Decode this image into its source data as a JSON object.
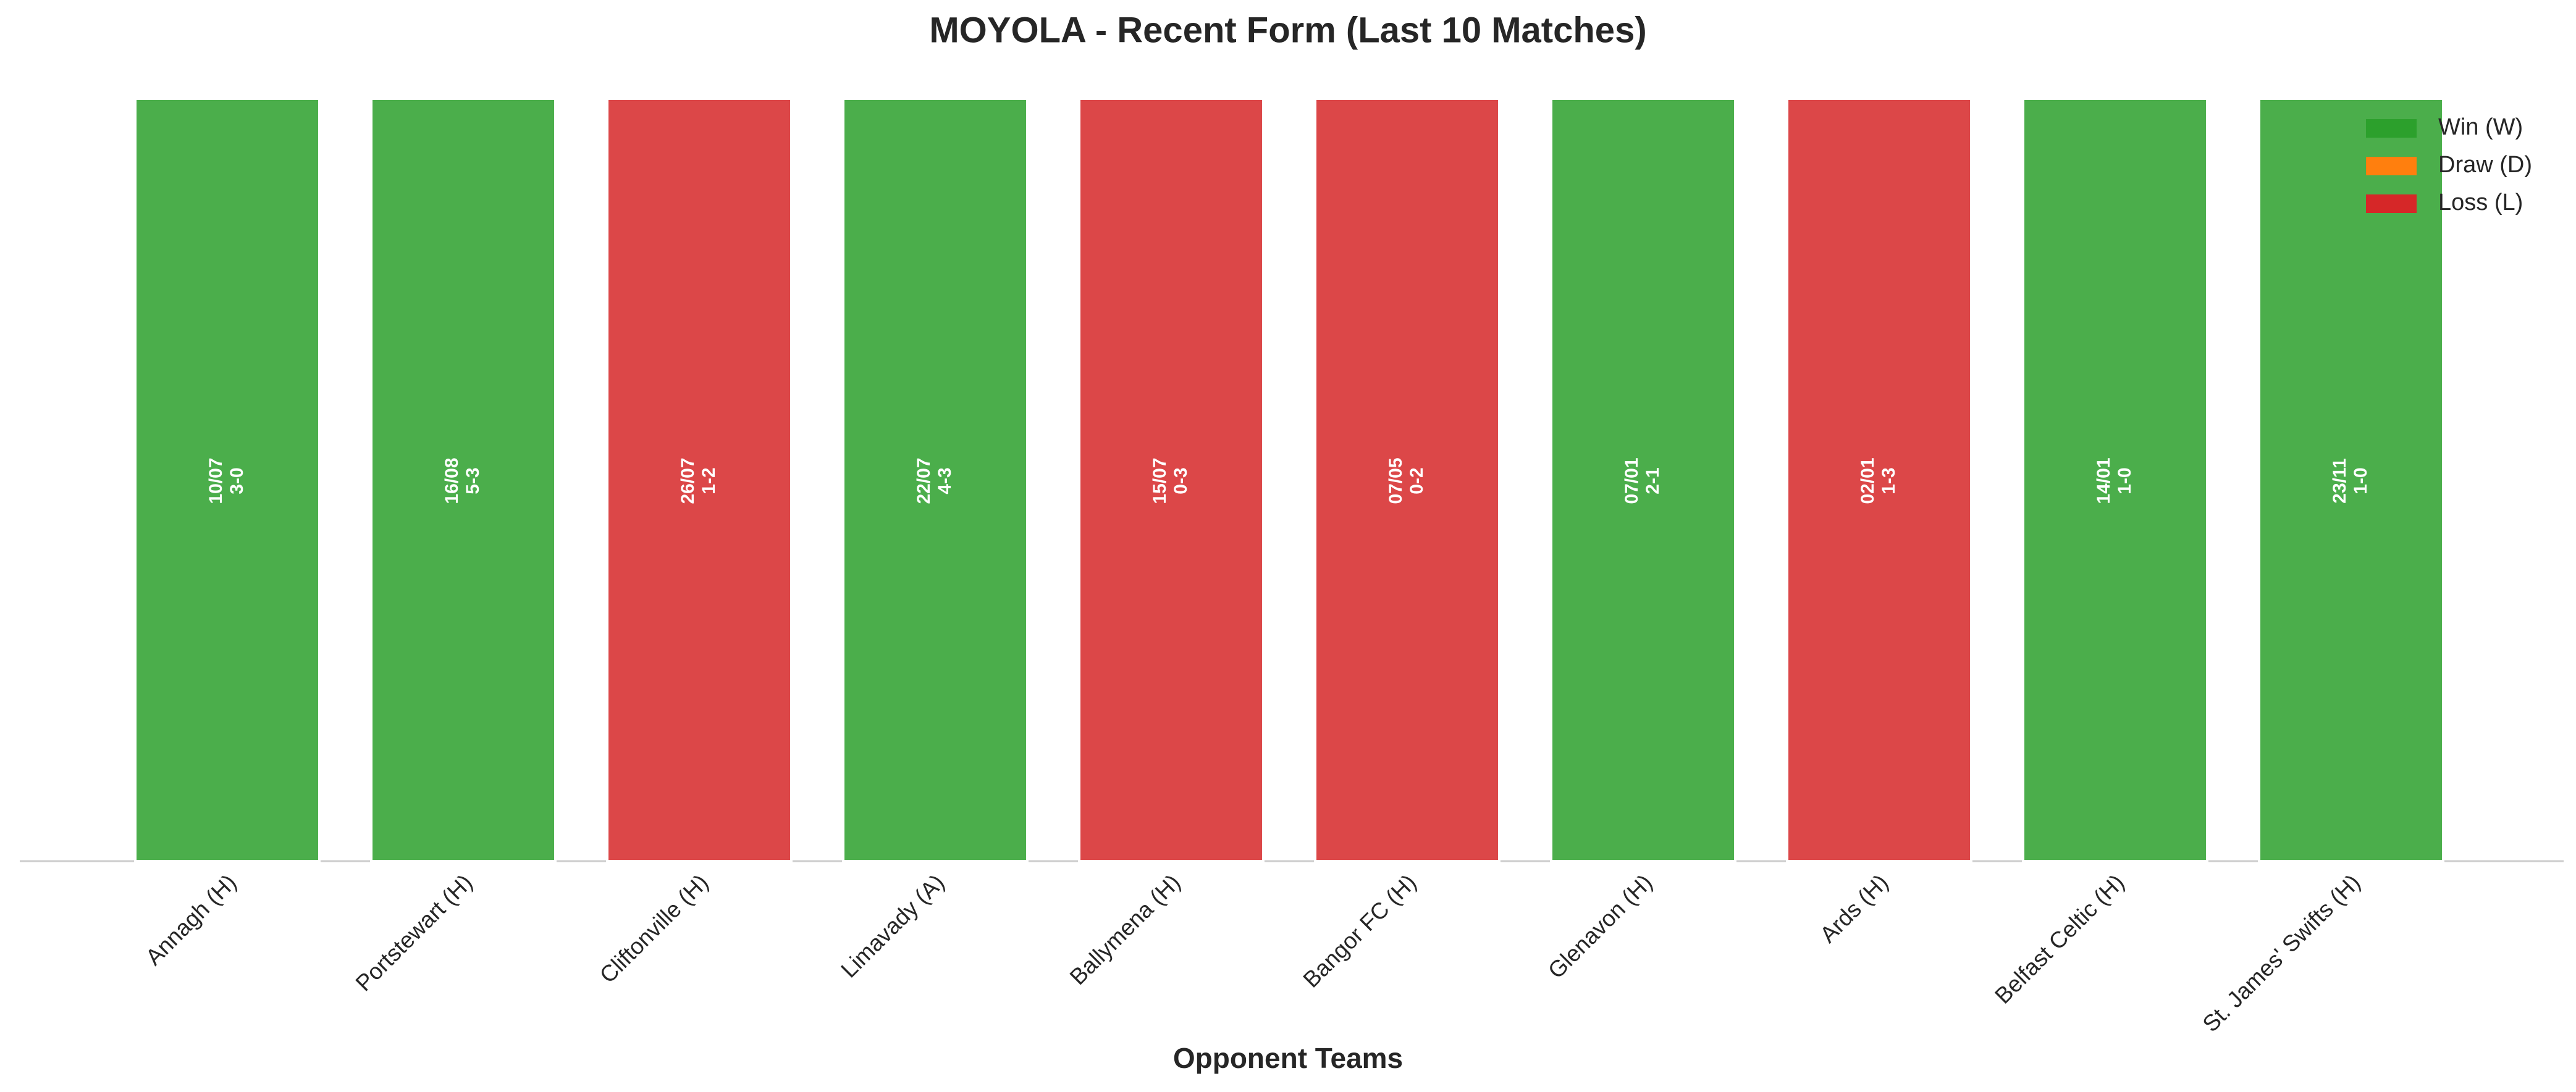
{
  "chart_data": {
    "type": "bar",
    "title": "MOYOLA - Recent Form (Last 10 Matches)",
    "x_label": "Opponent Teams",
    "categories": [
      "Annagh (H)",
      "Portstewart (H)",
      "Cliftonville (H)",
      "Limavady (A)",
      "Ballymena (H)",
      "Bangor FC (H)",
      "Glenavon (H)",
      "Ards (H)",
      "Belfast Celtic (H)",
      "St. James' Swifts (H)"
    ],
    "dates": [
      "10/07",
      "16/08",
      "26/07",
      "22/07",
      "15/07",
      "07/05",
      "07/01",
      "02/01",
      "14/01",
      "23/11"
    ],
    "scores": [
      "3-0",
      "5-3",
      "1-2",
      "4-3",
      "0-3",
      "0-2",
      "2-1",
      "1-3",
      "1-0",
      "1-0"
    ],
    "series": [
      {
        "name": "Win (W)",
        "color": "#2ca02c",
        "values": [
          1,
          1,
          null,
          1,
          null,
          null,
          1,
          null,
          1,
          1
        ]
      },
      {
        "name": "Draw (D)",
        "color": "#ff7f0e",
        "values": [
          null,
          null,
          null,
          null,
          null,
          null,
          null,
          null,
          null,
          null
        ]
      },
      {
        "name": "Loss (L)",
        "color": "#d62728",
        "values": [
          null,
          null,
          1,
          null,
          1,
          1,
          null,
          1,
          null,
          null
        ]
      }
    ],
    "ylim": [
      0,
      1
    ],
    "legend": "upper right"
  }
}
